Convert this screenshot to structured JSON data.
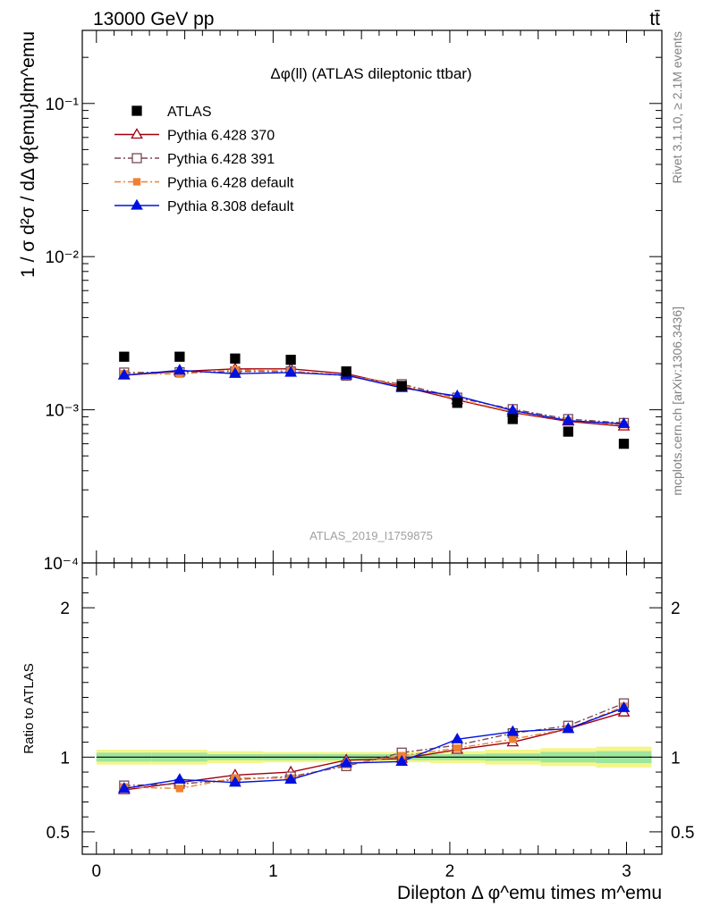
{
  "header": {
    "energy_label": "13000 GeV pp",
    "process_label": "tt̄"
  },
  "side_labels": {
    "rivet": "Rivet 3.1.10, ≥ 2.1M events",
    "mcplots": "mcplots.cern.ch [arXiv:1306.3436]"
  },
  "chart_data": [
    {
      "type": "scatter",
      "panel": "main",
      "title": "Δφ(ll) (ATLAS dileptonic ttbar)",
      "watermark": "ATLAS_2019_I1759875",
      "ylabel": "1 / σ  d²σ / dΔ φ{emu}dm^emu",
      "yscale": "log",
      "ylim": [
        0.0001,
        0.3
      ],
      "yticks": [
        {
          "value": 0.001,
          "label": "10⁻³"
        },
        {
          "value": 0.01,
          "label": "10⁻²"
        },
        {
          "value": 0.1,
          "label": "10⁻¹"
        },
        {
          "value": 0.0001,
          "label": "10⁻⁴"
        }
      ],
      "xlim": [
        -0.08,
        3.2
      ],
      "x": [
        0.157,
        0.471,
        0.785,
        1.1,
        1.414,
        1.728,
        2.042,
        2.356,
        2.67,
        2.985
      ],
      "legend_position": "top-left",
      "series": [
        {
          "name": "ATLAS",
          "color": "#000000",
          "marker": "square",
          "line": "none",
          "values": [
            0.00222,
            0.00222,
            0.00216,
            0.00212,
            0.00178,
            0.00143,
            0.00111,
            0.00087,
            0.00072,
            0.0006
          ]
        },
        {
          "name": "Pythia 6.428 370",
          "color": "#a00010",
          "marker": "open-triangle",
          "line": "solid",
          "values": [
            0.00168,
            0.00178,
            0.00185,
            0.00185,
            0.00172,
            0.00142,
            0.00116,
            0.00096,
            0.00084,
            0.00078
          ]
        },
        {
          "name": "Pythia 6.428 391",
          "color": "#7a4a55",
          "marker": "open-square",
          "line": "dashdot",
          "values": [
            0.00175,
            0.00176,
            0.00178,
            0.00178,
            0.00167,
            0.00147,
            0.0012,
            0.00101,
            0.00087,
            0.00082
          ]
        },
        {
          "name": "Pythia 6.428 default",
          "color": "#f08030",
          "marker": "filled-square",
          "line": "dashdot",
          "values": [
            0.00172,
            0.00171,
            0.00182,
            0.00179,
            0.00168,
            0.00145,
            0.00117,
            0.00097,
            0.00085,
            0.0008
          ]
        },
        {
          "name": "Pythia 8.308 default",
          "color": "#0010e0",
          "marker": "filled-triangle",
          "line": "solid",
          "values": [
            0.00168,
            0.00181,
            0.00172,
            0.00175,
            0.00168,
            0.00139,
            0.00123,
            0.00099,
            0.00085,
            0.00081
          ]
        }
      ]
    },
    {
      "type": "scatter",
      "panel": "ratio",
      "ylabel": "Ratio to ATLAS",
      "xlabel": "Dilepton Δ φ^emu times m^emu",
      "yscale": "linear",
      "ylim": [
        0.35,
        2.3
      ],
      "yticks": [
        {
          "value": 0.5,
          "label": "0.5"
        },
        {
          "value": 1,
          "label": "1"
        },
        {
          "value": 2,
          "label": "2"
        }
      ],
      "xlim": [
        -0.08,
        3.2
      ],
      "xticks": [
        {
          "value": 0,
          "label": "0"
        },
        {
          "value": 1,
          "label": "1"
        },
        {
          "value": 2,
          "label": "2"
        },
        {
          "value": 3,
          "label": "3"
        }
      ],
      "x": [
        0.157,
        0.471,
        0.785,
        1.1,
        1.414,
        1.728,
        2.042,
        2.356,
        2.67,
        2.985
      ],
      "band_x_edges": [
        0,
        0.314,
        0.628,
        0.942,
        1.257,
        1.571,
        1.885,
        2.199,
        2.513,
        2.827,
        3.142
      ],
      "band_inner": [
        0.03,
        0.03,
        0.02,
        0.02,
        0.02,
        0.02,
        0.02,
        0.025,
        0.035,
        0.04
      ],
      "band_outer": [
        0.05,
        0.05,
        0.04,
        0.035,
        0.035,
        0.035,
        0.04,
        0.05,
        0.06,
        0.07
      ],
      "series": [
        {
          "name": "Pythia 6.428 370",
          "color": "#a00010",
          "marker": "open-triangle",
          "line": "solid",
          "values": [
            0.78,
            0.83,
            0.88,
            0.9,
            0.98,
            0.99,
            1.05,
            1.1,
            1.19,
            1.3
          ]
        },
        {
          "name": "Pythia 6.428 391",
          "color": "#7a4a55",
          "marker": "open-square",
          "line": "dashdot",
          "values": [
            0.81,
            0.82,
            0.85,
            0.87,
            0.94,
            1.03,
            1.08,
            1.16,
            1.21,
            1.36
          ]
        },
        {
          "name": "Pythia 6.428 default",
          "color": "#f08030",
          "marker": "filled-square",
          "line": "dashdot",
          "values": [
            0.8,
            0.79,
            0.86,
            0.86,
            0.95,
            1.01,
            1.06,
            1.12,
            1.19,
            1.34
          ]
        },
        {
          "name": "Pythia 8.308 default",
          "color": "#0010e0",
          "marker": "filled-triangle",
          "line": "solid",
          "values": [
            0.79,
            0.85,
            0.83,
            0.85,
            0.96,
            0.97,
            1.12,
            1.17,
            1.19,
            1.33
          ]
        }
      ]
    }
  ]
}
